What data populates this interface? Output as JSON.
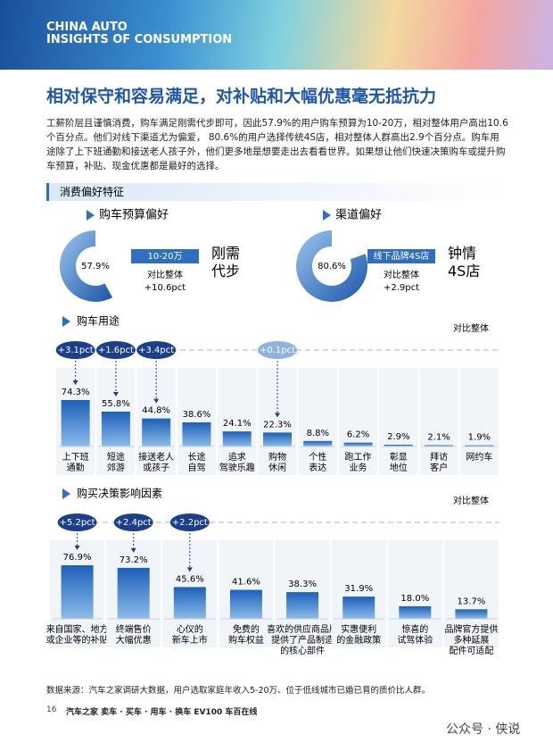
{
  "header": {
    "line1": "CHINA AUTO",
    "line2": "INSIGHTS OF CONSUMPTION"
  },
  "title": "相对保守和容易满足，对补贴和大幅优惠毫无抵抗力",
  "intro": "工薪阶层且谨慎消费，购车满足刚需代步即可，因此57.9%的用户购车预算为10-20万，相对整体用户高出10.6个百分点。他们对线下渠道尤为偏爱， 80.6%的用户选择传统4S店，相对整体人群高出2.9个百分点。购车用途除了上下班通勤和接送老人孩子外，他们更多地是想要走出去看看世界。如果想让他们快速决策购车或提升购车预算，补贴、现金优惠都是最好的选择。",
  "section_title": "消费偏好特征",
  "budget": {
    "title": "购车预算偏好",
    "value": 57.9,
    "value_label": "57.9%",
    "tag": "10-20万",
    "compare_label": "对比整体",
    "compare": "+10.6pct",
    "slogan": "刚需\n代步",
    "color": "#2f6fc0"
  },
  "channel": {
    "title": "渠道偏好",
    "value": 80.6,
    "value_label": "80.6%",
    "tag": "线下品牌4S店",
    "compare_label": "对比整体",
    "compare": "+2.9pct",
    "slogan": "钟情\n4S店",
    "color": "#2f6fc0"
  },
  "usage": {
    "type": "bar",
    "title": "购车用途",
    "compare_title": "对比整体",
    "color": "#2e74c8",
    "categories": [
      "上下班\n通勤",
      "短途\n郊游",
      "接送老人\n或孩子",
      "长途\n自驾",
      "追求\n驾驶乐趣",
      "购物\n休闲",
      "个性\n表达",
      "跑工作\n业务",
      "彰显\n地位",
      "拜访\n客户",
      "网约车"
    ],
    "values": [
      74.3,
      55.8,
      44.8,
      38.6,
      24.1,
      22.3,
      8.8,
      6.2,
      2.9,
      2.1,
      1.9
    ],
    "value_labels": [
      "74.3%",
      "55.8%",
      "44.8%",
      "38.6%",
      "24.1%",
      "22.3%",
      "8.8%",
      "6.2%",
      "2.9%",
      "2.1%",
      "1.9%"
    ],
    "callouts": [
      {
        "label": "+3.1pct",
        "color": "#1c3f8c"
      },
      {
        "label": "+1.6pct",
        "color": "#1c3f8c"
      },
      {
        "label": "+3.4pct",
        "color": "#1c3f8c"
      },
      null,
      null,
      {
        "label": "+0.1pct",
        "color": "#8db3de"
      },
      null,
      null,
      null,
      null,
      null
    ]
  },
  "factors": {
    "type": "bar",
    "title": "购买决策影响因素",
    "compare_title": "对比整体",
    "color": "#2e74c8",
    "categories": [
      "来自国家、地方\n或企业等的补贴",
      "终端售价\n大幅优惠",
      "心仪的\n新车上市",
      "免费的\n购车权益",
      "喜欢的供应商品牌\n提供了产品制造\n的核心部件",
      "实惠便利\n的金融政策",
      "惊喜的\n试驾体验",
      "品牌官方提供\n多种延展\n配件可适配"
    ],
    "values": [
      76.9,
      73.2,
      45.6,
      41.6,
      38.3,
      31.9,
      18.0,
      13.7
    ],
    "value_labels": [
      "76.9%",
      "73.2%",
      "45.6%",
      "41.6%",
      "38.3%",
      "31.9%",
      "18.0%",
      "13.7%"
    ],
    "callouts": [
      {
        "label": "+5.2pct",
        "color": "#1c3f8c"
      },
      {
        "label": "+2.4pct",
        "color": "#1c3f8c"
      },
      {
        "label": "+2.2pct",
        "color": "#1c3f8c"
      },
      null,
      null,
      null,
      null,
      null
    ]
  },
  "source": "数据来源：汽车之家调研大数据，用户选取家庭年收入5-20万、位于低线城市已婚已育的质价比人群。",
  "footer": {
    "page": "16",
    "brands": "汽车之家 卖车 · 买车 · 用车 · 换车   EV100 车百在线",
    "watermark": "公众号 · 侠说"
  }
}
